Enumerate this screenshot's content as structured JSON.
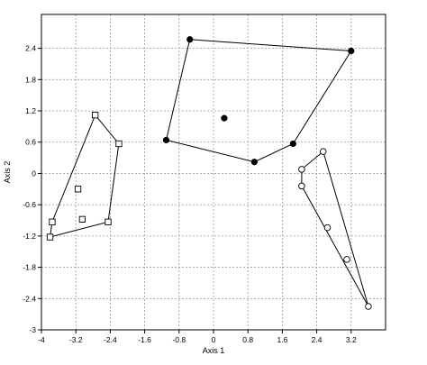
{
  "chart_data": {
    "type": "scatter",
    "xlabel": "Axis 1",
    "ylabel": "Axis 2",
    "xlim": [
      -4,
      4.0
    ],
    "ylim": [
      -3,
      3.05
    ],
    "x_ticks": [
      -4,
      -3.2,
      -2.4,
      -1.6,
      -0.8,
      0,
      0.8,
      1.6,
      2.4,
      3.2
    ],
    "y_ticks": [
      -3,
      -2.4,
      -1.8,
      -1.2,
      -0.6,
      0,
      0.6,
      1.2,
      1.8,
      2.4
    ],
    "x_tick_labels": [
      "-4",
      "-3.2",
      "-2.4",
      "-1.6",
      "-0.8",
      "0",
      "0.8",
      "1.6",
      "2.4",
      "3.2"
    ],
    "y_tick_labels": [
      "-3",
      "-2.4",
      "-1.8",
      "-1.2",
      "-0.6",
      "0",
      "0.6",
      "1.2",
      "1.8",
      "2.4"
    ],
    "grid": true,
    "series": [
      {
        "marker": "square-open",
        "points": [
          [
            -3.8,
            -1.22
          ],
          [
            -3.75,
            -0.93
          ],
          [
            -2.75,
            1.12
          ],
          [
            -2.2,
            0.57
          ],
          [
            -2.45,
            -0.93
          ],
          [
            -3.15,
            -0.3
          ],
          [
            -3.05,
            -0.88
          ]
        ],
        "hull": [
          [
            -3.8,
            -1.22
          ],
          [
            -3.75,
            -0.93
          ],
          [
            -2.75,
            1.12
          ],
          [
            -2.2,
            0.57
          ],
          [
            -2.45,
            -0.93
          ]
        ]
      },
      {
        "marker": "circle-filled",
        "points": [
          [
            -0.55,
            2.57
          ],
          [
            3.2,
            2.35
          ],
          [
            1.85,
            0.57
          ],
          [
            0.95,
            0.22
          ],
          [
            -1.1,
            0.64
          ],
          [
            0.25,
            1.06
          ]
        ],
        "hull": [
          [
            -0.55,
            2.57
          ],
          [
            3.2,
            2.35
          ],
          [
            1.85,
            0.57
          ],
          [
            0.95,
            0.22
          ],
          [
            -1.1,
            0.64
          ]
        ]
      },
      {
        "marker": "circle-open",
        "points": [
          [
            2.55,
            0.42
          ],
          [
            3.6,
            -2.55
          ],
          [
            2.05,
            0.08
          ],
          [
            2.05,
            -0.24
          ],
          [
            2.65,
            -1.04
          ],
          [
            3.1,
            -1.65
          ]
        ],
        "hull": [
          [
            2.55,
            0.42
          ],
          [
            3.6,
            -2.55
          ],
          [
            2.05,
            -0.24
          ],
          [
            2.05,
            0.08
          ]
        ]
      }
    ]
  }
}
